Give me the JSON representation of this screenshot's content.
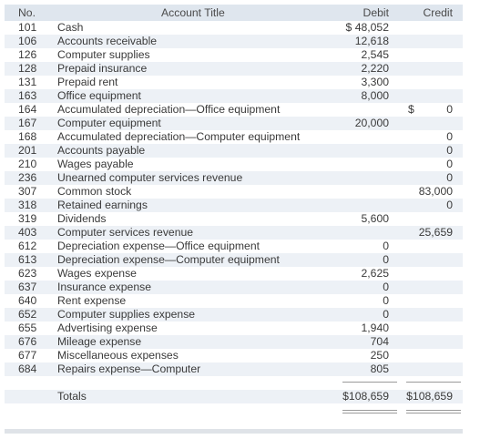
{
  "header": {
    "no": "No.",
    "account_title": "Account Title",
    "debit": "Debit",
    "credit": "Credit"
  },
  "rows": [
    {
      "no": "101",
      "title": "Cash",
      "debit": "$ 48,052",
      "credit": ""
    },
    {
      "no": "106",
      "title": "Accounts receivable",
      "debit": "12,618",
      "credit": ""
    },
    {
      "no": "126",
      "title": "Computer supplies",
      "debit": "2,545",
      "credit": ""
    },
    {
      "no": "128",
      "title": "Prepaid insurance",
      "debit": "2,220",
      "credit": ""
    },
    {
      "no": "131",
      "title": "Prepaid rent",
      "debit": "3,300",
      "credit": ""
    },
    {
      "no": "163",
      "title": "Office equipment",
      "debit": "8,000",
      "credit": ""
    },
    {
      "no": "164",
      "title": "Accumulated depreciation—Office equipment",
      "debit": "",
      "credit": "0",
      "credit_dollar": "$"
    },
    {
      "no": "167",
      "title": "Computer equipment",
      "debit": "20,000",
      "credit": ""
    },
    {
      "no": "168",
      "title": "Accumulated depreciation—Computer equipment",
      "debit": "",
      "credit": "0"
    },
    {
      "no": "201",
      "title": "Accounts payable",
      "debit": "",
      "credit": "0"
    },
    {
      "no": "210",
      "title": "Wages payable",
      "debit": "",
      "credit": "0"
    },
    {
      "no": "236",
      "title": "Unearned computer services revenue",
      "debit": "",
      "credit": "0"
    },
    {
      "no": "307",
      "title": "Common stock",
      "debit": "",
      "credit": "83,000"
    },
    {
      "no": "318",
      "title": "Retained earnings",
      "debit": "",
      "credit": "0"
    },
    {
      "no": "319",
      "title": "Dividends",
      "debit": "5,600",
      "credit": ""
    },
    {
      "no": "403",
      "title": "Computer services revenue",
      "debit": "",
      "credit": "25,659"
    },
    {
      "no": "612",
      "title": "Depreciation expense—Office equipment",
      "debit": "0",
      "credit": ""
    },
    {
      "no": "613",
      "title": "Depreciation expense—Computer equipment",
      "debit": "0",
      "credit": ""
    },
    {
      "no": "623",
      "title": "Wages expense",
      "debit": "2,625",
      "credit": ""
    },
    {
      "no": "637",
      "title": "Insurance expense",
      "debit": "0",
      "credit": ""
    },
    {
      "no": "640",
      "title": "Rent expense",
      "debit": "0",
      "credit": ""
    },
    {
      "no": "652",
      "title": "Computer supplies expense",
      "debit": "0",
      "credit": ""
    },
    {
      "no": "655",
      "title": "Advertising expense",
      "debit": "1,940",
      "credit": ""
    },
    {
      "no": "676",
      "title": "Mileage expense",
      "debit": "704",
      "credit": ""
    },
    {
      "no": "677",
      "title": "Miscellaneous expenses",
      "debit": "250",
      "credit": ""
    },
    {
      "no": "684",
      "title": "Repairs expense—Computer",
      "debit": "805",
      "credit": ""
    }
  ],
  "totals": {
    "label": "Totals",
    "debit": "$108,659",
    "credit": "$108,659"
  },
  "colors": {
    "header_band": "#dfe6ee",
    "row_band": "#edf1f6",
    "text": "#3a3a3a"
  }
}
